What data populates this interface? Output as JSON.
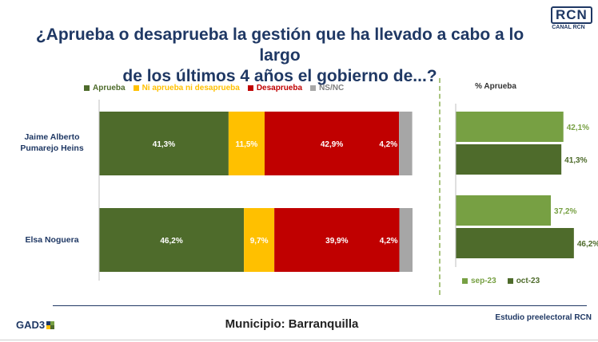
{
  "header": {
    "title_line1": "¿Aprueba o desaprueba la gestión que ha llevado a cabo a lo largo",
    "title_line2": "de los últimos 4 años el gobierno de...?",
    "logo_text": "RCN",
    "logo_sub": "CANAL RCN"
  },
  "chart_data": [
    {
      "type": "bar",
      "orientation": "horizontal",
      "stacked": true,
      "categories": [
        "Jaime Alberto Pumarejo Heins",
        "Elsa Noguera"
      ],
      "series": [
        {
          "name": "Aprueba",
          "color": "#4e6b2b",
          "values": [
            41.3,
            46.2
          ],
          "labels": [
            "41,3%",
            "46,2%"
          ]
        },
        {
          "name": "Ni aprueba ni desaprueba",
          "color": "#ffc000",
          "values": [
            11.5,
            9.7
          ],
          "labels": [
            "11,5%",
            "9,7%"
          ]
        },
        {
          "name": "Desaprueba",
          "color": "#c00000",
          "values": [
            42.9,
            39.9
          ],
          "labels": [
            "42,9%",
            "39,9%"
          ]
        },
        {
          "name": "NS/NC",
          "color": "#a6a6a6",
          "values": [
            4.2,
            4.2
          ],
          "labels": [
            "4,2%",
            "4,2%"
          ]
        }
      ],
      "xlim": [
        0,
        100
      ],
      "legend": "top"
    },
    {
      "type": "bar",
      "orientation": "horizontal",
      "title": "% Aprueba",
      "categories": [
        "Jaime Alberto Pumarejo Heins",
        "Elsa Noguera"
      ],
      "series": [
        {
          "name": "sep-23",
          "color": "#77a043",
          "values": [
            42.1,
            37.2
          ],
          "labels": [
            "42,1%",
            "37,2%"
          ]
        },
        {
          "name": "oct-23",
          "color": "#4e6b2b",
          "values": [
            41.3,
            46.2
          ],
          "labels": [
            "41,3%",
            "46,2%"
          ]
        }
      ],
      "xlim": [
        0,
        50
      ],
      "legend": "bottom"
    }
  ],
  "footer": {
    "municipio": "Municipio: Barranquilla",
    "source": "Estudio preelectoral RCN",
    "logo": "GAD3"
  }
}
